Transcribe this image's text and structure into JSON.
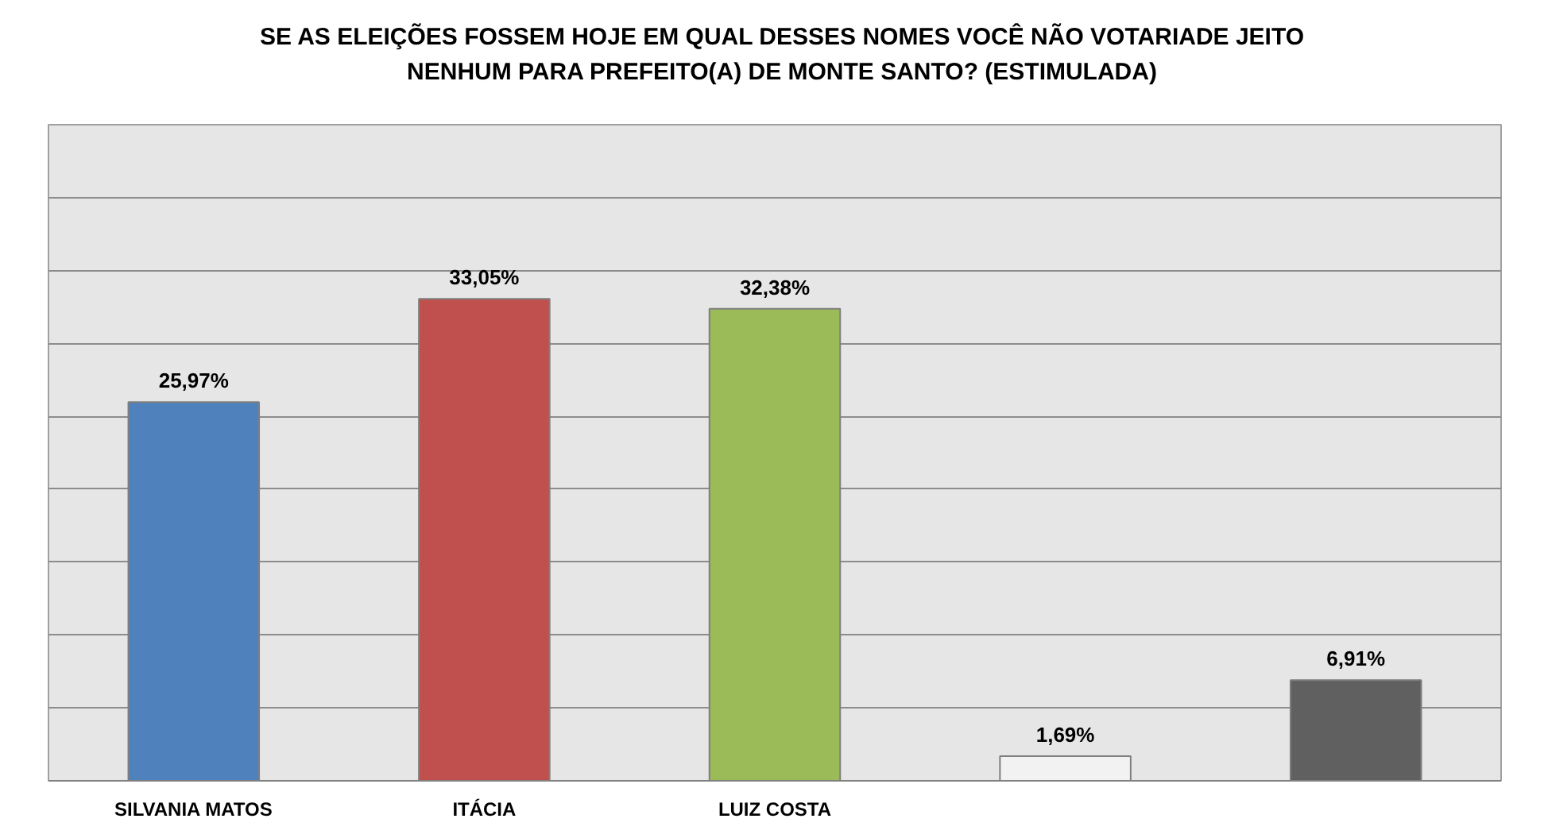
{
  "chart_data": {
    "type": "bar",
    "title": "SE AS ELEIÇÕES FOSSEM HOJE EM QUAL DESSES NOMES VOCÊ NÃO VOTARIADE JEITO NENHUM PARA PREFEITO(A) DE MONTE SANTO? (ESTIMULADA)",
    "categories": [
      "SILVANIA MATOS",
      "ITÁCIA",
      "LUIZ COSTA",
      null,
      null
    ],
    "values": [
      25.97,
      33.05,
      32.38,
      1.69,
      6.91
    ],
    "colors": [
      "#4f81bd",
      "#c0504d",
      "#9bbb59",
      "#f2f2f2",
      "#606060"
    ],
    "value_labels": [
      "25,97%",
      "33,05%",
      "32,38%",
      "1,69%",
      "6,91%"
    ],
    "ylim": [
      0,
      45
    ],
    "yticks": [
      {
        "value": 0,
        "label": null
      },
      {
        "value": 5,
        "label": null
      },
      {
        "value": 10,
        "label": null
      },
      {
        "value": 15,
        "label": null
      },
      {
        "value": 20,
        "label": null
      },
      {
        "value": 25,
        "label": null
      },
      {
        "value": 30,
        "label": null
      },
      {
        "value": 35,
        "label": null
      },
      {
        "value": 40,
        "label": null
      },
      {
        "value": 45,
        "label": null
      }
    ],
    "grid": "y",
    "tick_labels": "x"
  }
}
